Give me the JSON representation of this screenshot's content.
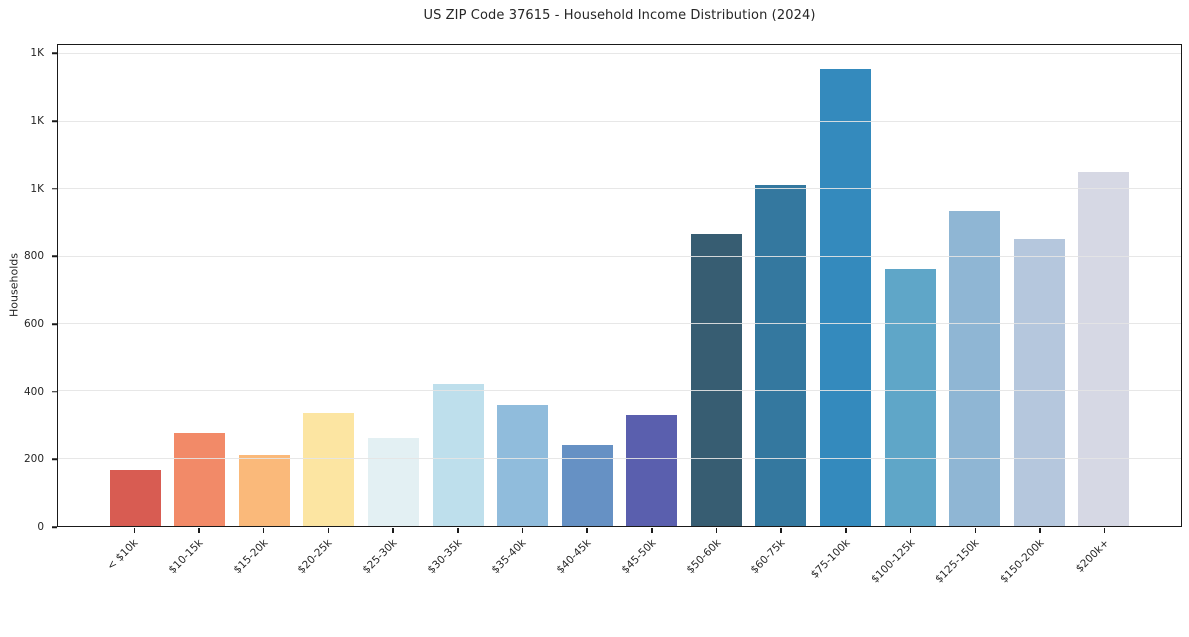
{
  "chart_data": {
    "type": "bar",
    "title": "US ZIP Code 37615 - Household Income Distribution (2024)",
    "ylabel": "Households",
    "xlabel": "",
    "categories": [
      "< $10k",
      "$10-15k",
      "$15-20k",
      "$20-25k",
      "$25-30k",
      "$30-35k",
      "$35-40k",
      "$40-45k",
      "$45-50k",
      "$50-60k",
      "$60-75k",
      "$75-100k",
      "$100-125k",
      "$125-150k",
      "$150-200k",
      "$200k+"
    ],
    "values": [
      166,
      277,
      210,
      336,
      260,
      421,
      359,
      240,
      329,
      866,
      1011,
      1357,
      762,
      936,
      851,
      1050
    ],
    "bar_colors": [
      "#d85c52",
      "#f28a68",
      "#fab97a",
      "#fce5a2",
      "#e3f0f3",
      "#bedfec",
      "#90bcdc",
      "#6691c4",
      "#5a5fae",
      "#375d72",
      "#34789f",
      "#348abd",
      "#5fa6c8",
      "#8fb6d4",
      "#b5c7dd",
      "#d6d8e4"
    ],
    "ylim": [
      0,
      1428
    ],
    "ytick_values": [
      0,
      200,
      400,
      600,
      800,
      1000,
      1200,
      1400
    ],
    "ytick_labels": [
      "0",
      "200",
      "400",
      "600",
      "800",
      "1K",
      "1K",
      "1K"
    ],
    "grid": "horizontal gridlines every 200, light gray, drawn above bars",
    "legend_position": "none",
    "background_color": "#ffffff",
    "spine_color": "#1a1a1a",
    "text_color": "#262626",
    "grid_color": "#e8e8e8"
  }
}
